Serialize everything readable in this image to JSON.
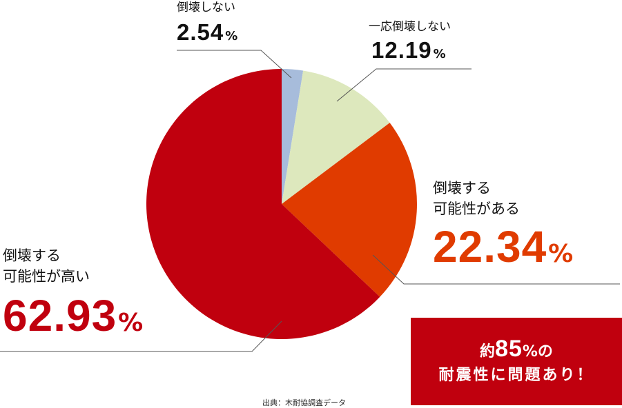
{
  "chart_data": {
    "type": "pie",
    "slices": [
      {
        "label": "倒壊しない",
        "value": 2.54,
        "color": "#a7bcdb"
      },
      {
        "label": "一応倒壊しない",
        "value": 12.19,
        "color": "#dde8bd"
      },
      {
        "label": "倒壊する可能性がある",
        "value": 22.34,
        "color": "#e03b00"
      },
      {
        "label": "倒壊する可能性が高い",
        "value": 62.93,
        "color": "#c0000e"
      }
    ]
  },
  "labels": {
    "s0": {
      "line1": "倒壊しない",
      "value": "2.54",
      "unit": "%"
    },
    "s1": {
      "line1": "一応倒壊しない",
      "value": "12.19",
      "unit": "%"
    },
    "s2": {
      "line1": "倒壊する",
      "line2": "可能性がある",
      "value": "22.34",
      "unit": "%"
    },
    "s3": {
      "line1": "倒壊する",
      "line2": "可能性が高い",
      "value": "62.93",
      "unit": "%"
    }
  },
  "callout": {
    "prefix": "約",
    "number": "85",
    "unit": "%の",
    "line2": "耐震性に問題あり！"
  },
  "source": "出典：木耐協調査データ"
}
